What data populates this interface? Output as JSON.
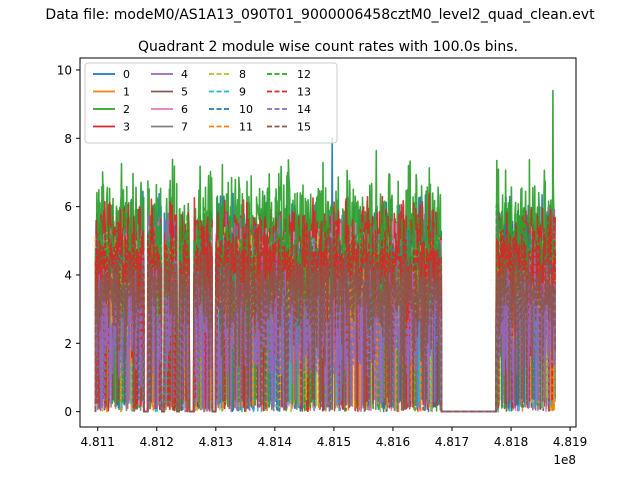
{
  "figure": {
    "suptitle": "Data file: modeM0/AS1A13_090T01_9000006458cztM0_level2_quad_clean.evt",
    "title": "Quadrant 2 module wise count rates with 100.0s bins."
  },
  "chart_data": {
    "type": "line",
    "title": "Quadrant 2 module wise count rates with 100.0s bins.",
    "xlabel": "",
    "ylabel": "",
    "x_offset_label": "1e8",
    "xlim": [
      4.8107,
      4.8191
    ],
    "ylim": [
      -0.45,
      10.35
    ],
    "x_ticks": [
      4.811,
      4.812,
      4.813,
      4.814,
      4.815,
      4.816,
      4.817,
      4.818,
      4.819
    ],
    "x_tick_labels": [
      "4.811",
      "4.812",
      "4.813",
      "4.814",
      "4.815",
      "4.816",
      "4.817",
      "4.818",
      "4.819"
    ],
    "y_ticks": [
      0,
      2,
      4,
      6,
      8,
      10
    ],
    "y_tick_labels": [
      "0",
      "2",
      "4",
      "6",
      "8",
      "10"
    ],
    "grid": false,
    "legend": {
      "placement": "top-left",
      "columns": 4
    },
    "x_segments": [
      [
        4.81096,
        4.81178
      ],
      [
        4.81185,
        4.81208
      ],
      [
        4.81213,
        4.81234
      ],
      [
        4.81238,
        4.81255
      ],
      [
        4.81263,
        4.81294
      ],
      [
        4.813,
        4.81682
      ],
      [
        4.81775,
        4.81875
      ]
    ],
    "series": [
      {
        "name": "0",
        "color": "#1f77b4",
        "dash": "solid",
        "mean": 4.8,
        "spread": 1.3,
        "peak": [
          4.81497,
          8.0
        ]
      },
      {
        "name": "1",
        "color": "#ff7f0e",
        "dash": "solid",
        "mean": 3.9,
        "spread": 0.9
      },
      {
        "name": "2",
        "color": "#2ca02c",
        "dash": "solid",
        "mean": 5.4,
        "spread": 1.6,
        "peak": [
          4.81871,
          9.4
        ]
      },
      {
        "name": "3",
        "color": "#d62728",
        "dash": "solid",
        "mean": 4.9,
        "spread": 1.1
      },
      {
        "name": "4",
        "color": "#9467bd",
        "dash": "solid",
        "mean": 3.4,
        "spread": 2.0
      },
      {
        "name": "5",
        "color": "#8c564b",
        "dash": "solid",
        "mean": 3.8,
        "spread": 0.8
      },
      {
        "name": "6",
        "color": "#e377c2",
        "dash": "solid",
        "mean": 4.3,
        "spread": 1.0
      },
      {
        "name": "7",
        "color": "#7f7f7f",
        "dash": "solid",
        "mean": 4.1,
        "spread": 0.9
      },
      {
        "name": "8",
        "color": "#bcbd22",
        "dash": "dashed",
        "mean": 4.0,
        "spread": 1.0
      },
      {
        "name": "9",
        "color": "#17becf",
        "dash": "dashed",
        "mean": 3.9,
        "spread": 1.0
      },
      {
        "name": "10",
        "color": "#1f77b4",
        "dash": "dashed",
        "mean": 4.2,
        "spread": 1.0
      },
      {
        "name": "11",
        "color": "#ff7f0e",
        "dash": "dashed",
        "mean": 3.8,
        "spread": 1.0
      },
      {
        "name": "12",
        "color": "#2ca02c",
        "dash": "dashed",
        "mean": 4.6,
        "spread": 1.2
      },
      {
        "name": "13",
        "color": "#d62728",
        "dash": "dashed",
        "mean": 4.4,
        "spread": 1.1
      },
      {
        "name": "14",
        "color": "#9467bd",
        "dash": "dashed",
        "mean": 2.6,
        "spread": 1.6
      },
      {
        "name": "15",
        "color": "#8c564b",
        "dash": "dashed",
        "mean": 3.6,
        "spread": 1.0
      }
    ]
  }
}
